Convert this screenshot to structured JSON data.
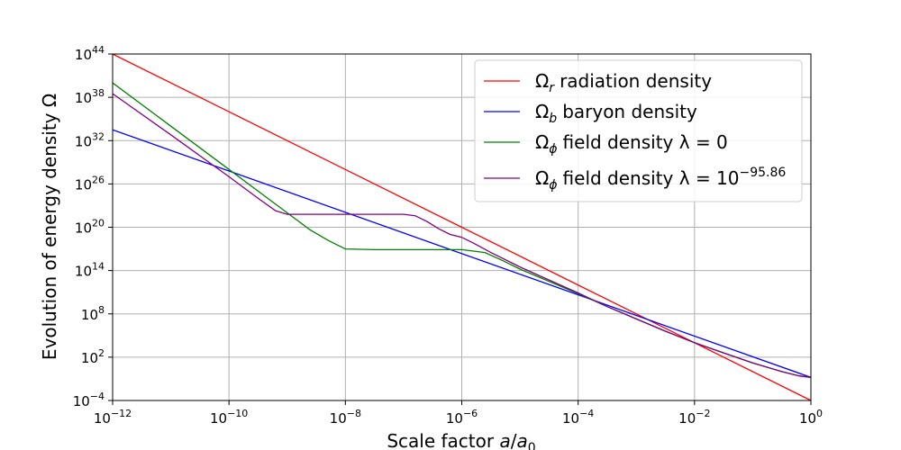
{
  "chart_data": {
    "type": "line",
    "title": "",
    "xlabel": "Scale factor a/a0",
    "ylabel": "Evolution of energy density Ω",
    "xscale": "log",
    "yscale": "log",
    "xlim_exp": [
      -12,
      0
    ],
    "ylim_exp": [
      -4,
      44
    ],
    "grid": true,
    "legend_position": "top-right",
    "x_ticks": [
      {
        "base": "10",
        "exp": "−12",
        "value_exp": -12
      },
      {
        "base": "10",
        "exp": "−10",
        "value_exp": -10
      },
      {
        "base": "10",
        "exp": "−8",
        "value_exp": -8
      },
      {
        "base": "10",
        "exp": "−6",
        "value_exp": -6
      },
      {
        "base": "10",
        "exp": "−4",
        "value_exp": -4
      },
      {
        "base": "10",
        "exp": "−2",
        "value_exp": -2
      },
      {
        "base": "10",
        "exp": "0",
        "value_exp": 0
      }
    ],
    "y_ticks": [
      {
        "base": "10",
        "exp": "−4",
        "value_exp": -4
      },
      {
        "base": "10",
        "exp": "2",
        "value_exp": 2
      },
      {
        "base": "10",
        "exp": "8",
        "value_exp": 8
      },
      {
        "base": "10",
        "exp": "14",
        "value_exp": 14
      },
      {
        "base": "10",
        "exp": "20",
        "value_exp": 20
      },
      {
        "base": "10",
        "exp": "26",
        "value_exp": 26
      },
      {
        "base": "10",
        "exp": "32",
        "value_exp": 32
      },
      {
        "base": "10",
        "exp": "38",
        "value_exp": 38
      },
      {
        "base": "10",
        "exp": "44",
        "value_exp": 44
      }
    ],
    "series": [
      {
        "name": "Ω_r radiation density",
        "legend_symbol": "Ω",
        "legend_sub": "r",
        "legend_text": "radiation density",
        "legend_sup": "",
        "color": "#ff0000",
        "log10_x": [
          -12,
          0
        ],
        "log10_y": [
          44,
          -4
        ]
      },
      {
        "name": "Ω_b baryon density",
        "legend_symbol": "Ω",
        "legend_sub": "b",
        "legend_text": "baryon density",
        "legend_sup": "",
        "color": "#0000ff",
        "log10_x": [
          -12,
          0
        ],
        "log10_y": [
          33.5,
          -0.8
        ]
      },
      {
        "name": "Ω_ϕ field density λ = 0",
        "legend_symbol": "Ω",
        "legend_sub": "ϕ",
        "legend_text": "field density λ = 0",
        "legend_sup": "",
        "color": "#008000",
        "log10_x": [
          -12,
          -11,
          -10,
          -9.5,
          -9,
          -8.6,
          -8.3,
          -8.1,
          -8,
          -7.5,
          -7,
          -6.5,
          -6,
          -5.6,
          -5.3,
          -5,
          -4.5,
          -4,
          -3.5,
          -3,
          -2.5,
          -2,
          -1.5,
          -1,
          -0.5,
          -0.2,
          0
        ],
        "log10_y": [
          40.0,
          34.0,
          28.0,
          25.0,
          22.0,
          19.6,
          18.2,
          17.4,
          17.0,
          16.9,
          16.9,
          16.9,
          16.9,
          16.5,
          15.4,
          14.2,
          12.5,
          10.8,
          9.0,
          7.3,
          5.6,
          4.0,
          2.6,
          1.2,
          0.0,
          -0.6,
          -0.8
        ]
      },
      {
        "name": "Ω_ϕ field density λ = 10^−95.86",
        "legend_symbol": "Ω",
        "legend_sub": "ϕ",
        "legend_text": "field density λ = 10",
        "legend_sup": "−95.86",
        "color": "#800080",
        "log10_x": [
          -12,
          -11,
          -10,
          -9.5,
          -9.2,
          -9,
          -8.5,
          -8,
          -7.5,
          -7,
          -6.8,
          -6.6,
          -6.4,
          -6.2,
          -6,
          -5.8,
          -5.5,
          -5,
          -4.5,
          -4,
          -3.5,
          -3,
          -2.5,
          -2,
          -1.5,
          -1,
          -0.5,
          -0.2,
          0
        ],
        "log10_y": [
          38.5,
          32.8,
          27.0,
          24.0,
          22.3,
          21.8,
          21.8,
          21.8,
          21.8,
          21.8,
          21.6,
          20.8,
          19.8,
          19.0,
          18.6,
          17.8,
          16.5,
          14.5,
          12.7,
          10.9,
          9.0,
          7.3,
          5.6,
          4.0,
          2.6,
          1.2,
          0.0,
          -0.6,
          -0.8
        ]
      }
    ]
  }
}
